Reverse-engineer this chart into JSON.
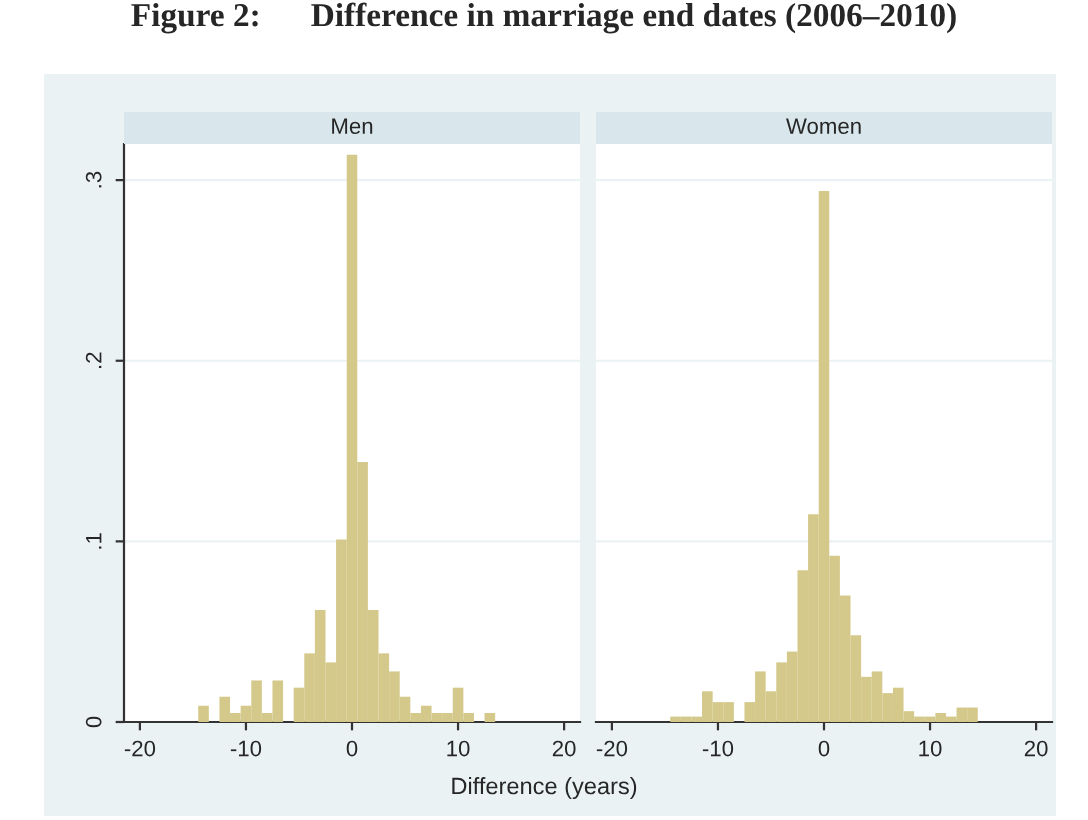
{
  "chart_data": [
    {
      "type": "histogram",
      "title": "Men",
      "xlabel": "Difference (years)",
      "annotations": [
        "Figure 2:      Difference in marriage end dates (2006–2010)"
      ],
      "bins": [
        -14.5,
        -13.5,
        -12.5,
        -11.5,
        -10.5,
        -9.5,
        -8.5,
        -7.5,
        -6.5,
        -5.5,
        -4.5,
        -3.5,
        -2.5,
        -1.5,
        -0.5,
        0.5,
        1.5,
        2.5,
        3.5,
        4.5,
        5.5,
        6.5,
        7.5,
        8.5,
        9.5,
        10.5,
        11.5,
        12.5,
        13.5
      ],
      "values": [
        0.009,
        0,
        0.014,
        0.005,
        0.009,
        0.023,
        0.005,
        0.023,
        0,
        0.019,
        0.038,
        0.062,
        0.033,
        0.101,
        0.314,
        0.144,
        0.062,
        0.038,
        0.028,
        0.014,
        0.005,
        0.009,
        0.005,
        0.005,
        0.019,
        0.005,
        0,
        0.005
      ],
      "color": "#d4c98a",
      "xlim": [
        -21.5,
        21.5
      ],
      "xticks": [
        -20,
        -10,
        0,
        10,
        20
      ],
      "ylim": [
        0,
        0.32
      ],
      "yticks": [
        {
          "value": 0,
          "label": "0"
        },
        {
          "value": 0.1,
          "label": ".1"
        },
        {
          "value": 0.2,
          "label": ".2"
        },
        {
          "value": 0.3,
          "label": ".3"
        }
      ],
      "grid": "y"
    },
    {
      "type": "histogram",
      "title": "Women",
      "bins": [
        -14.5,
        -13.5,
        -12.5,
        -11.5,
        -10.5,
        -9.5,
        -8.5,
        -7.5,
        -6.5,
        -5.5,
        -4.5,
        -3.5,
        -2.5,
        -1.5,
        -0.5,
        0.5,
        1.5,
        2.5,
        3.5,
        4.5,
        5.5,
        6.5,
        7.5,
        8.5,
        9.5,
        10.5,
        11.5,
        12.5,
        13.5,
        14.5
      ],
      "values": [
        0.003,
        0.003,
        0.003,
        0.017,
        0.011,
        0.011,
        0,
        0.011,
        0.028,
        0.017,
        0.033,
        0.039,
        0.084,
        0.115,
        0.294,
        0.092,
        0.07,
        0.048,
        0.025,
        0.028,
        0.016,
        0.019,
        0.006,
        0.003,
        0.003,
        0.005,
        0.003,
        0.008,
        0.008
      ],
      "color": "#d4c98a",
      "xlim": [
        -21.5,
        21.5
      ],
      "xticks": [
        -20,
        -10,
        0,
        10,
        20
      ],
      "ylim": [
        0,
        0.32
      ],
      "yticks": [
        {
          "value": 0,
          "label": null
        },
        {
          "value": 0.1,
          "label": null
        },
        {
          "value": 0.2,
          "label": null
        },
        {
          "value": 0.3,
          "label": null
        }
      ],
      "grid": "y",
      "tick_labels": "x"
    }
  ]
}
